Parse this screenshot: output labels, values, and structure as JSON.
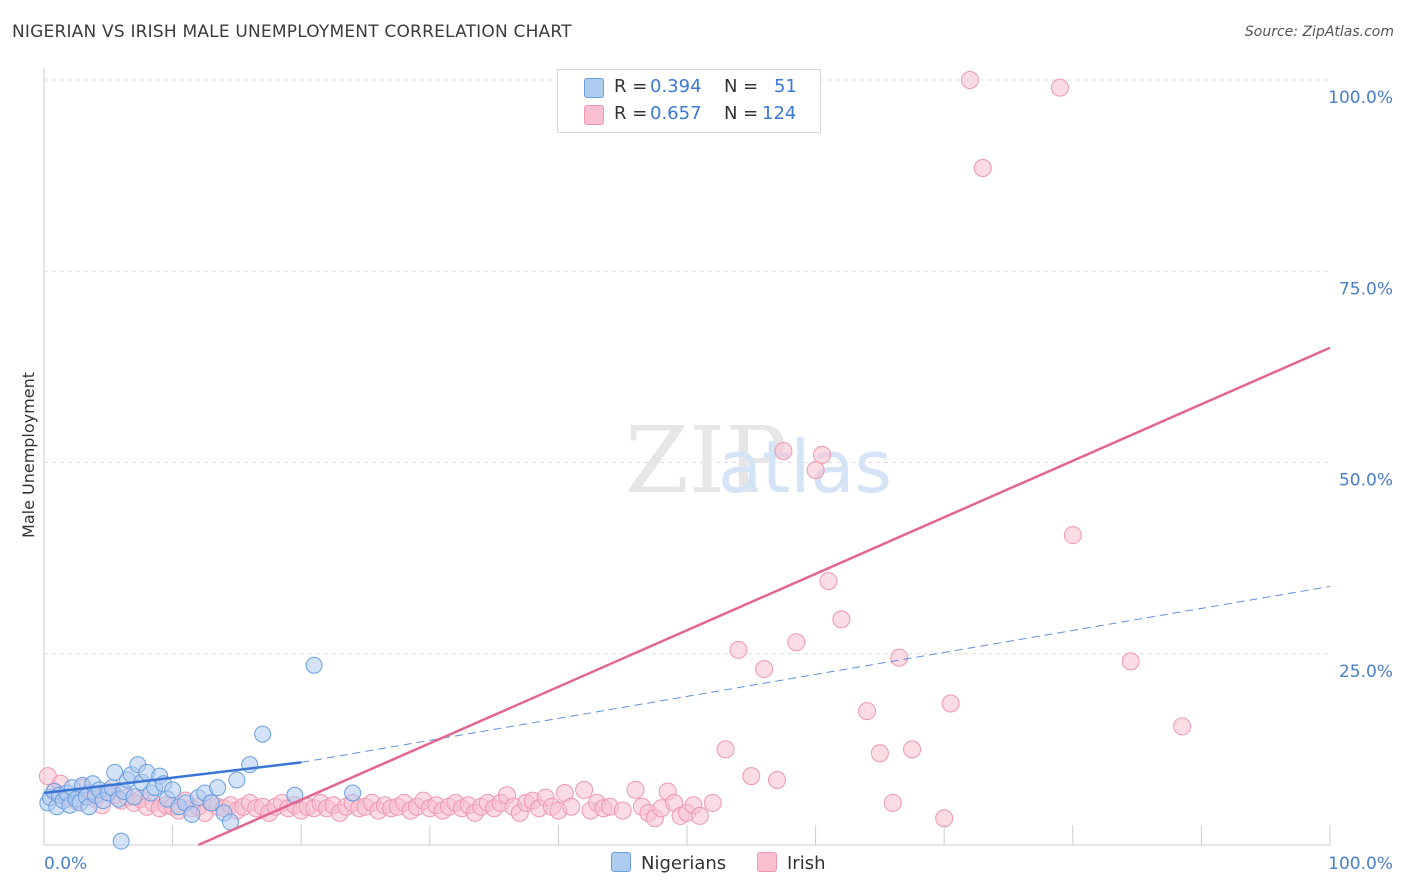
{
  "title": "NIGERIAN VS IRISH MALE UNEMPLOYMENT CORRELATION CHART",
  "source": "Source: ZipAtlas.com",
  "watermark": {
    "zip": "ZIP",
    "atlas": "atlas"
  },
  "legend": {
    "r_label": "R =",
    "n_label": "N =",
    "nigerians": {
      "r": "0.394",
      "n": "51"
    },
    "irish": {
      "r": "0.657",
      "n": "124"
    }
  },
  "bottom_legend": {
    "nigerians": "Nigerians",
    "irish": "Irish"
  },
  "colors": {
    "nigerians_fill": "#aecbf0",
    "nigerians_stroke": "#6a9fe0",
    "nigerians_line": "#3a74d4",
    "irish_fill": "#f7bfcf",
    "irish_stroke": "#ee97b0",
    "irish_line": "#e4668f",
    "tick_text": "#4a7fcc",
    "grid": "#dddddd"
  },
  "chart_data": {
    "type": "scatter",
    "title": "NIGERIAN VS IRISH MALE UNEMPLOYMENT CORRELATION CHART",
    "xlabel": "",
    "ylabel": "Male Unemployment",
    "xlim": [
      0,
      100
    ],
    "ylim": [
      0,
      100
    ],
    "x_tick_labels": [
      "0.0%",
      "100.0%"
    ],
    "y_tick_labels": [
      {
        "value": 25,
        "label": "25.0%"
      },
      {
        "value": 50,
        "label": "50.0%"
      },
      {
        "value": 75,
        "label": "75.0%"
      },
      {
        "value": 100,
        "label": "100.0%"
      }
    ],
    "series": [
      {
        "name": "Nigerians",
        "points": [
          [
            0.3,
            5.5
          ],
          [
            0.5,
            6.2
          ],
          [
            0.8,
            7.0
          ],
          [
            1.0,
            5.0
          ],
          [
            1.2,
            6.5
          ],
          [
            1.5,
            5.8
          ],
          [
            1.8,
            6.8
          ],
          [
            2.0,
            5.2
          ],
          [
            2.2,
            7.5
          ],
          [
            2.5,
            6.0
          ],
          [
            2.8,
            5.5
          ],
          [
            3.0,
            7.8
          ],
          [
            3.3,
            6.3
          ],
          [
            3.5,
            5.0
          ],
          [
            3.8,
            8.0
          ],
          [
            4.0,
            6.5
          ],
          [
            4.3,
            7.2
          ],
          [
            4.6,
            5.8
          ],
          [
            5.0,
            6.8
          ],
          [
            5.3,
            7.5
          ],
          [
            5.5,
            9.5
          ],
          [
            5.8,
            6.0
          ],
          [
            6.0,
            0.5
          ],
          [
            6.2,
            7.0
          ],
          [
            6.5,
            8.5
          ],
          [
            6.8,
            9.2
          ],
          [
            7.0,
            6.3
          ],
          [
            7.3,
            10.5
          ],
          [
            7.6,
            8.2
          ],
          [
            8.0,
            9.5
          ],
          [
            8.3,
            6.8
          ],
          [
            8.6,
            7.5
          ],
          [
            9.0,
            9.0
          ],
          [
            9.3,
            8.0
          ],
          [
            9.6,
            6.0
          ],
          [
            10.0,
            7.2
          ],
          [
            10.5,
            5.0
          ],
          [
            11.0,
            5.5
          ],
          [
            11.5,
            4.0
          ],
          [
            12.0,
            6.2
          ],
          [
            12.5,
            6.8
          ],
          [
            13.0,
            5.5
          ],
          [
            13.5,
            7.5
          ],
          [
            14.0,
            4.2
          ],
          [
            14.5,
            3.0
          ],
          [
            15.0,
            8.5
          ],
          [
            16.0,
            10.5
          ],
          [
            17.0,
            14.5
          ],
          [
            19.5,
            6.5
          ],
          [
            21.0,
            23.5
          ],
          [
            24.0,
            6.8
          ]
        ]
      },
      {
        "name": "Irish",
        "points": [
          [
            0.3,
            9.0
          ],
          [
            0.8,
            7.0
          ],
          [
            1.3,
            8.0
          ],
          [
            1.8,
            6.2
          ],
          [
            2.5,
            5.8
          ],
          [
            3.0,
            7.5
          ],
          [
            3.5,
            6.8
          ],
          [
            4.0,
            6.0
          ],
          [
            4.5,
            5.2
          ],
          [
            5.0,
            7.0
          ],
          [
            5.5,
            6.5
          ],
          [
            6.0,
            5.8
          ],
          [
            6.5,
            6.2
          ],
          [
            7.0,
            5.5
          ],
          [
            7.5,
            6.0
          ],
          [
            8.0,
            5.0
          ],
          [
            8.5,
            5.5
          ],
          [
            9.0,
            4.8
          ],
          [
            9.5,
            5.2
          ],
          [
            10.0,
            5.0
          ],
          [
            10.5,
            4.5
          ],
          [
            11.0,
            5.8
          ],
          [
            11.5,
            4.8
          ],
          [
            12.0,
            5.0
          ],
          [
            12.5,
            4.2
          ],
          [
            13.0,
            5.5
          ],
          [
            13.5,
            5.0
          ],
          [
            14.0,
            4.8
          ],
          [
            14.5,
            5.2
          ],
          [
            15.0,
            4.5
          ],
          [
            15.5,
            5.0
          ],
          [
            16.0,
            5.5
          ],
          [
            16.5,
            4.8
          ],
          [
            17.0,
            5.0
          ],
          [
            17.5,
            4.2
          ],
          [
            18.0,
            5.0
          ],
          [
            18.5,
            5.5
          ],
          [
            19.0,
            4.8
          ],
          [
            19.5,
            5.2
          ],
          [
            20.0,
            4.5
          ],
          [
            20.5,
            5.0
          ],
          [
            21.0,
            4.8
          ],
          [
            21.5,
            5.5
          ],
          [
            22.0,
            4.8
          ],
          [
            22.5,
            5.2
          ],
          [
            23.0,
            4.2
          ],
          [
            23.5,
            5.0
          ],
          [
            24.0,
            5.5
          ],
          [
            24.5,
            4.8
          ],
          [
            25.0,
            5.0
          ],
          [
            25.5,
            5.5
          ],
          [
            26.0,
            4.5
          ],
          [
            26.5,
            5.2
          ],
          [
            27.0,
            4.8
          ],
          [
            27.5,
            5.0
          ],
          [
            28.0,
            5.5
          ],
          [
            28.5,
            4.5
          ],
          [
            29.0,
            5.0
          ],
          [
            29.5,
            5.8
          ],
          [
            30.0,
            4.8
          ],
          [
            30.5,
            5.2
          ],
          [
            31.0,
            4.5
          ],
          [
            31.5,
            5.0
          ],
          [
            32.0,
            5.5
          ],
          [
            32.5,
            4.8
          ],
          [
            33.0,
            5.2
          ],
          [
            33.5,
            4.2
          ],
          [
            34.0,
            5.0
          ],
          [
            34.5,
            5.5
          ],
          [
            35.0,
            4.8
          ],
          [
            35.5,
            5.5
          ],
          [
            36.0,
            6.5
          ],
          [
            36.5,
            5.0
          ],
          [
            37.0,
            4.2
          ],
          [
            37.5,
            5.5
          ],
          [
            38.0,
            5.8
          ],
          [
            38.5,
            4.8
          ],
          [
            39.0,
            6.2
          ],
          [
            39.5,
            5.0
          ],
          [
            40.0,
            4.5
          ],
          [
            40.5,
            6.8
          ],
          [
            41.0,
            5.0
          ],
          [
            42.0,
            7.2
          ],
          [
            42.5,
            4.5
          ],
          [
            43.0,
            5.5
          ],
          [
            43.5,
            4.8
          ],
          [
            44.0,
            5.0
          ],
          [
            45.0,
            4.5
          ],
          [
            46.0,
            7.2
          ],
          [
            46.5,
            5.0
          ],
          [
            47.0,
            4.2
          ],
          [
            47.5,
            3.5
          ],
          [
            48.0,
            4.8
          ],
          [
            48.5,
            7.0
          ],
          [
            49.0,
            5.5
          ],
          [
            49.5,
            3.8
          ],
          [
            50.0,
            4.2
          ],
          [
            50.5,
            5.2
          ],
          [
            51.0,
            3.8
          ],
          [
            52.0,
            5.5
          ],
          [
            53.0,
            12.5
          ],
          [
            54.0,
            25.5
          ],
          [
            55.0,
            9.0
          ],
          [
            56.0,
            23.0
          ],
          [
            57.0,
            8.5
          ],
          [
            58.5,
            26.5
          ],
          [
            57.5,
            51.5
          ],
          [
            60.0,
            49.0
          ],
          [
            60.5,
            51.0
          ],
          [
            61.0,
            34.5
          ],
          [
            62.0,
            29.5
          ],
          [
            64.0,
            17.5
          ],
          [
            65.0,
            12.0
          ],
          [
            66.0,
            5.5
          ],
          [
            66.5,
            24.5
          ],
          [
            67.5,
            12.5
          ],
          [
            70.0,
            3.5
          ],
          [
            70.5,
            18.5
          ],
          [
            72.0,
            100.0
          ],
          [
            73.0,
            88.5
          ],
          [
            79.0,
            99.0
          ],
          [
            80.0,
            40.5
          ],
          [
            84.5,
            24.0
          ],
          [
            88.5,
            15.5
          ]
        ]
      }
    ],
    "trend_lines": [
      {
        "series": "Nigerians",
        "from": [
          0,
          6.8
        ],
        "to": [
          20,
          10.8
        ],
        "extended_to": [
          100,
          33.8
        ]
      },
      {
        "series": "Irish",
        "from": [
          12,
          0
        ],
        "to": [
          100,
          65
        ]
      }
    ]
  }
}
